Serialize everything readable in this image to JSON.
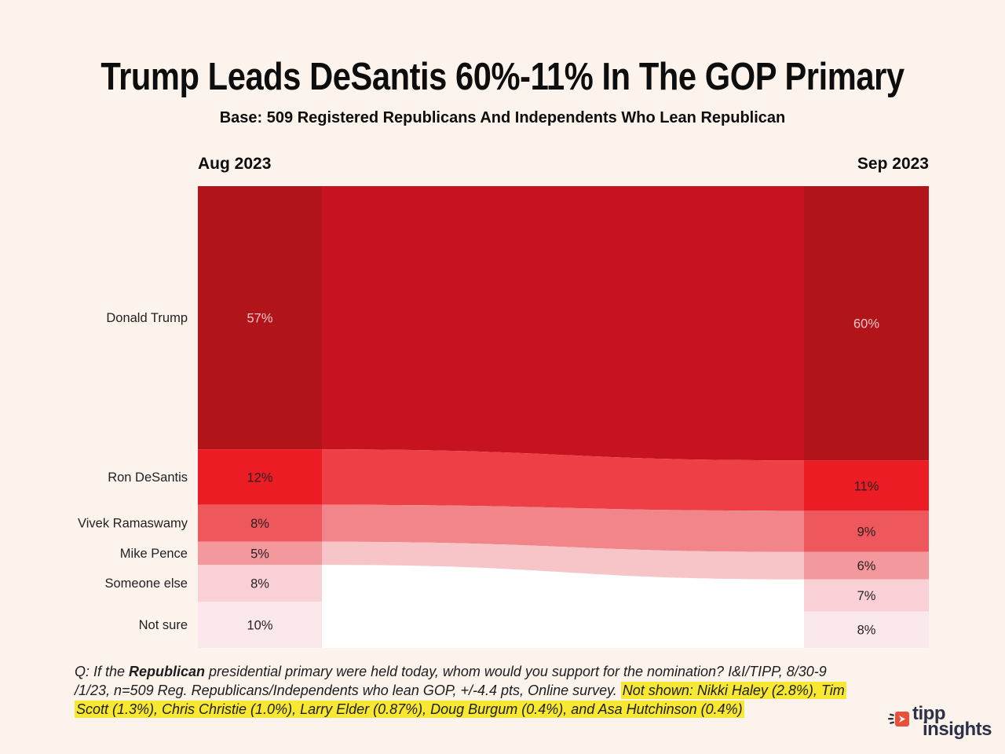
{
  "page": {
    "background": "#fcf3ec",
    "plot_background": "#ffffff"
  },
  "chart_data": {
    "type": "bar",
    "variant": "alluvial-flow (two stacked columns linked by ribbons)",
    "title": "Trump Leads DeSantis 60%-11% In The GOP Primary",
    "subtitle": "Base: 509 Registered Republicans And Independents Who Lean Republican",
    "columns": [
      "Aug 2023",
      "Sep 2023"
    ],
    "categories": [
      "Donald Trump",
      "Ron DeSantis",
      "Vivek Ramaswamy",
      "Mike Pence",
      "Someone else",
      "Not sure"
    ],
    "series": [
      {
        "name": "Aug 2023",
        "values": [
          57,
          12,
          8,
          5,
          8,
          10
        ]
      },
      {
        "name": "Sep 2023",
        "values": [
          60,
          11,
          9,
          6,
          7,
          8
        ]
      }
    ],
    "unit": "%",
    "legend": "none",
    "grid": "off",
    "candidates": [
      {
        "name": "Donald Trump",
        "aug": 57,
        "sep": 60,
        "bar_color": "#b11419",
        "band_color": "#c6131f",
        "value_text_color": "#f6c6c9"
      },
      {
        "name": "Ron DeSantis",
        "aug": 12,
        "sep": 11,
        "bar_color": "#ec1c24",
        "band_color": "#ee3e46",
        "value_text_color": "#2b2021"
      },
      {
        "name": "Vivek Ramaswamy",
        "aug": 8,
        "sep": 9,
        "bar_color": "#ee575c",
        "band_color": "#f1858a",
        "value_text_color": "#2b2021"
      },
      {
        "name": "Mike Pence",
        "aug": 5,
        "sep": 6,
        "bar_color": "#f3989d",
        "band_color": "#f7c4c8",
        "value_text_color": "#2b2021"
      },
      {
        "name": "Someone else",
        "aug": 8,
        "sep": 7,
        "bar_color": "#f9d0d5",
        "band_color": null,
        "value_text_color": "#2b2021"
      },
      {
        "name": "Not sure",
        "aug": 10,
        "sep": 8,
        "bar_color": "#fbe8ea",
        "band_color": null,
        "value_text_color": "#2b2021"
      }
    ],
    "category_label_color": "#222222"
  },
  "footnote": {
    "highlight_color": "#f8e831",
    "lines": [
      {
        "segments": [
          {
            "t": "Q:  If the ",
            "style": "plain"
          },
          {
            "t": "Republican",
            "style": "bold"
          },
          {
            "t": "  presidential primary were held today, whom would you support for the nomination? I&I/TIPP, 8/30-9",
            "style": "plain"
          }
        ]
      },
      {
        "segments": [
          {
            "t": "/1/23, n=509 Reg. Republicans/Independents who lean GOP, +/-4.4 pts, Online survey. ",
            "style": "plain"
          },
          {
            "t": "Not shown: Nikki Haley (2.8%), Tim",
            "style": "highlight"
          }
        ]
      },
      {
        "segments": [
          {
            "t": "Scott (1.3%), Chris Christie (1.0%), Larry Elder (0.87%), Doug Burgum (0.4%), and Asa Hutchinson (0.4%)",
            "style": "highlight"
          }
        ]
      }
    ]
  },
  "logo": {
    "line1": "tipp",
    "line2": "insights",
    "text_color": "#2c3148",
    "icon_color": "#e8503c"
  }
}
